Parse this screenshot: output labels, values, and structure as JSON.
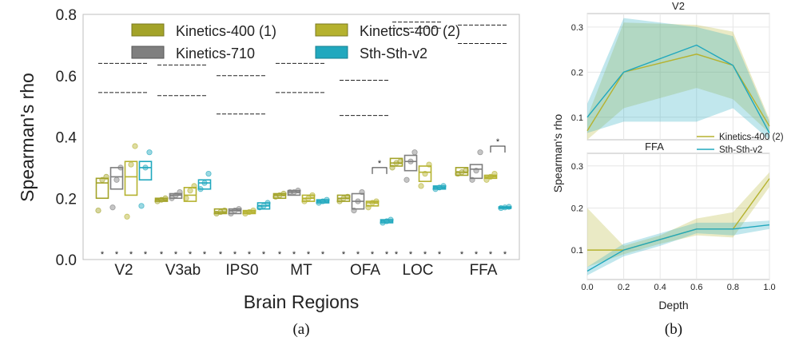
{
  "colors": {
    "kinetics400_1": "#a3a329",
    "kinetics400_2": "#b5b22f",
    "kinetics710": "#7f7f7f",
    "sthsthv2": "#21a8be",
    "noise_line": "#222222",
    "frame": "#bfbfbf"
  },
  "chart_data": [
    {
      "id": "a",
      "type": "box",
      "caption": "(a)",
      "xlabel": "Brain Regions",
      "ylabel": "Spearman's rho",
      "ylim": [
        0.0,
        0.8
      ],
      "yticks": [
        "0.0",
        "0.2",
        "0.4",
        "0.6",
        "0.8"
      ],
      "categories": [
        "V2",
        "V3ab",
        "IPS0",
        "MT",
        "OFA",
        "LOC",
        "FFA"
      ],
      "legend": [
        "Kinetics-400 (1)",
        "Kinetics-400 (2)",
        "Kinetics-710",
        "Sth-Sth-v2"
      ],
      "noise_ceiling": [
        [
          0.64,
          0.545
        ],
        [
          0.635,
          0.535
        ],
        [
          0.6,
          0.475
        ],
        [
          0.64,
          0.545
        ],
        [
          0.585,
          0.47
        ],
        [
          0.775,
          0.755
        ],
        [
          0.765,
          0.705
        ]
      ],
      "series": [
        {
          "name": "Kinetics-400 (1)",
          "color_key": "kinetics400_1",
          "boxes": [
            {
              "q1": 0.2,
              "med": 0.25,
              "q3": 0.265
            },
            {
              "q1": 0.19,
              "med": 0.195,
              "q3": 0.2
            },
            {
              "q1": 0.15,
              "med": 0.155,
              "q3": 0.165
            },
            {
              "q1": 0.2,
              "med": 0.21,
              "q3": 0.215
            },
            {
              "q1": 0.19,
              "med": 0.2,
              "q3": 0.21
            },
            {
              "q1": 0.305,
              "med": 0.315,
              "q3": 0.33
            },
            {
              "q1": 0.275,
              "med": 0.285,
              "q3": 0.3
            }
          ],
          "points": [
            [
              0.16,
              0.26,
              0.27
            ],
            [
              0.19,
              0.195,
              0.2
            ],
            [
              0.15,
              0.155,
              0.16
            ],
            [
              0.205,
              0.21,
              0.215
            ],
            [
              0.19,
              0.2,
              0.205
            ],
            [
              0.3,
              0.315,
              0.32
            ],
            [
              0.28,
              0.285,
              0.29
            ]
          ]
        },
        {
          "name": "Kinetics-710",
          "color_key": "kinetics710",
          "boxes": [
            {
              "q1": 0.23,
              "med": 0.27,
              "q3": 0.3
            },
            {
              "q1": 0.2,
              "med": 0.21,
              "q3": 0.215
            },
            {
              "q1": 0.15,
              "med": 0.16,
              "q3": 0.165
            },
            {
              "q1": 0.21,
              "med": 0.22,
              "q3": 0.225
            },
            {
              "q1": 0.165,
              "med": 0.19,
              "q3": 0.215
            },
            {
              "q1": 0.29,
              "med": 0.32,
              "q3": 0.34
            },
            {
              "q1": 0.265,
              "med": 0.295,
              "q3": 0.31
            }
          ],
          "points": [
            [
              0.17,
              0.26,
              0.3
            ],
            [
              0.2,
              0.21,
              0.22
            ],
            [
              0.15,
              0.16,
              0.165
            ],
            [
              0.22,
              0.22,
              0.225
            ],
            [
              0.16,
              0.19,
              0.22
            ],
            [
              0.26,
              0.32,
              0.35
            ],
            [
              0.26,
              0.29,
              0.35
            ]
          ]
        },
        {
          "name": "Kinetics-400 (2)",
          "color_key": "kinetics400_2",
          "boxes": [
            {
              "q1": 0.21,
              "med": 0.27,
              "q3": 0.32
            },
            {
              "q1": 0.19,
              "med": 0.21,
              "q3": 0.235
            },
            {
              "q1": 0.15,
              "med": 0.155,
              "q3": 0.16
            },
            {
              "q1": 0.19,
              "med": 0.2,
              "q3": 0.21
            },
            {
              "q1": 0.175,
              "med": 0.185,
              "q3": 0.19
            },
            {
              "q1": 0.255,
              "med": 0.285,
              "q3": 0.305
            },
            {
              "q1": 0.265,
              "med": 0.27,
              "q3": 0.275
            }
          ],
          "points": [
            [
              0.14,
              0.31,
              0.37
            ],
            [
              0.2,
              0.225,
              0.24
            ],
            [
              0.15,
              0.155,
              0.16
            ],
            [
              0.19,
              0.2,
              0.21
            ],
            [
              0.17,
              0.185,
              0.19
            ],
            [
              0.24,
              0.28,
              0.31
            ],
            [
              0.26,
              0.27,
              0.28
            ]
          ]
        },
        {
          "name": "Sth-Sth-v2",
          "color_key": "sthsthv2",
          "boxes": [
            {
              "q1": 0.26,
              "med": 0.3,
              "q3": 0.32
            },
            {
              "q1": 0.23,
              "med": 0.25,
              "q3": 0.26
            },
            {
              "q1": 0.165,
              "med": 0.175,
              "q3": 0.185
            },
            {
              "q1": 0.185,
              "med": 0.19,
              "q3": 0.195
            },
            {
              "q1": 0.12,
              "med": 0.125,
              "q3": 0.13
            },
            {
              "q1": 0.23,
              "med": 0.235,
              "q3": 0.24
            },
            {
              "q1": 0.167,
              "med": 0.17,
              "q3": 0.172
            }
          ],
          "points": [
            [
              0.175,
              0.3,
              0.35
            ],
            [
              0.23,
              0.25,
              0.28
            ],
            [
              0.17,
              0.175,
              0.185
            ],
            [
              0.185,
              0.19,
              0.195
            ],
            [
              0.12,
              0.125,
              0.13
            ],
            [
              0.23,
              0.235,
              0.24
            ],
            [
              0.168,
              0.17,
              0.172
            ]
          ]
        }
      ],
      "significance_markers": {
        "symbol": "*",
        "count_per_region": 4
      },
      "brackets": [
        {
          "category": "OFA",
          "symbol": "*",
          "y": 0.3
        },
        {
          "category": "FFA",
          "symbol": "*",
          "y": 0.37
        }
      ]
    },
    {
      "id": "b_v2",
      "type": "area_line",
      "title": "V2",
      "xlim": [
        0.0,
        1.0
      ],
      "ylim": [
        0.05,
        0.33
      ],
      "yticks": [
        "0.1",
        "0.2",
        "0.3"
      ],
      "x": [
        0.0,
        0.2,
        0.6,
        0.8,
        1.0
      ],
      "series": [
        {
          "name": "Kinetics-400 (2)",
          "color_key": "kinetics400_2",
          "values": [
            0.07,
            0.2,
            0.24,
            0.215,
            0.08
          ],
          "lower": [
            0.05,
            0.12,
            0.165,
            0.14,
            0.065
          ],
          "upper": [
            0.1,
            0.31,
            0.305,
            0.29,
            0.095
          ]
        },
        {
          "name": "Sth-Sth-v2",
          "color_key": "sthsthv2",
          "values": [
            0.1,
            0.2,
            0.26,
            0.215,
            0.065
          ],
          "lower": [
            0.065,
            0.09,
            0.09,
            0.12,
            0.05
          ],
          "upper": [
            0.13,
            0.32,
            0.3,
            0.28,
            0.09
          ]
        }
      ]
    },
    {
      "id": "b_ffa",
      "type": "area_line",
      "title": "FFA",
      "xlabel": "Depth",
      "ylabel": "Spearman's rho",
      "caption": "(b)",
      "xlim": [
        0.0,
        1.0
      ],
      "ylim": [
        0.03,
        0.33
      ],
      "xticks": [
        "0.0",
        "0.2",
        "0.4",
        "0.6",
        "0.8",
        "1.0"
      ],
      "yticks": [
        "0.1",
        "0.2",
        "0.3"
      ],
      "legend": [
        "Kinetics-400 (2)",
        "Sth-Sth-v2"
      ],
      "x": [
        0.0,
        0.2,
        0.4,
        0.6,
        0.8,
        1.0
      ],
      "series": [
        {
          "name": "Kinetics-400 (2)",
          "color_key": "kinetics400_2",
          "values": [
            0.1,
            0.1,
            0.125,
            0.15,
            0.15,
            0.27
          ],
          "lower": [
            0.06,
            0.09,
            0.115,
            0.135,
            0.13,
            0.25
          ],
          "upper": [
            0.2,
            0.11,
            0.135,
            0.175,
            0.19,
            0.285
          ]
        },
        {
          "name": "Sth-Sth-v2",
          "color_key": "sthsthv2",
          "values": [
            0.05,
            0.1,
            0.125,
            0.15,
            0.15,
            0.16
          ],
          "lower": [
            0.04,
            0.085,
            0.11,
            0.14,
            0.135,
            0.15
          ],
          "upper": [
            0.06,
            0.115,
            0.14,
            0.165,
            0.165,
            0.17
          ]
        }
      ]
    }
  ]
}
